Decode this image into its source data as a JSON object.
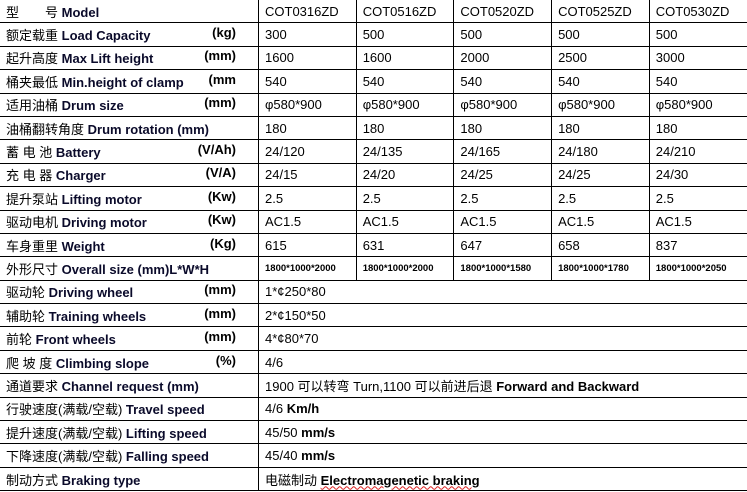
{
  "models": [
    "COT0316ZD",
    "COT0516ZD",
    "COT0520ZD",
    "COT0525ZD",
    "COT0530ZD"
  ],
  "header": {
    "cn": "型　　号",
    "en": "Model"
  },
  "rows": [
    {
      "cn": "额定载重",
      "en": "Load Capacity",
      "unit": "(kg)",
      "values": [
        "300",
        "500",
        "500",
        "500",
        "500"
      ]
    },
    {
      "cn": "起升高度",
      "en": "Max Lift height",
      "unit": "(mm)",
      "values": [
        "1600",
        "1600",
        "2000",
        "2500",
        "3000"
      ]
    },
    {
      "cn": "桶夹最低",
      "en": "Min.height of clamp",
      "unit": "(mm",
      "values": [
        "540",
        "540",
        "540",
        "540",
        "540"
      ]
    },
    {
      "cn": "适用油桶",
      "en": "Drum size",
      "unit": "(mm)",
      "values": [
        "φ580*900",
        "φ580*900",
        "φ580*900",
        "φ580*900",
        "φ580*900"
      ]
    },
    {
      "cn": "油桶翻转角度",
      "en": "Drum rotation (mm)",
      "unit": "",
      "values": [
        "180",
        "180",
        "180",
        "180",
        "180"
      ]
    },
    {
      "cn": "蓄 电 池",
      "en": "Battery",
      "unit": "(V/Ah)",
      "values": [
        "24/120",
        "24/135",
        "24/165",
        "24/180",
        "24/210"
      ]
    },
    {
      "cn": "充 电 器",
      "en": "Charger",
      "unit": "(V/A)",
      "values": [
        "24/15",
        "24/20",
        "24/25",
        "24/25",
        "24/30"
      ]
    },
    {
      "cn": "提升泵站",
      "en": "Lifting motor",
      "unit": "(Kw)",
      "values": [
        "2.5",
        "2.5",
        "2.5",
        "2.5",
        "2.5"
      ]
    },
    {
      "cn": "驱动电机",
      "en": "Driving motor",
      "unit": "(Kw)",
      "values": [
        "AC1.5",
        "AC1.5",
        "AC1.5",
        "AC1.5",
        "AC1.5"
      ]
    },
    {
      "cn": "车身重里",
      "en": "Weight",
      "unit": "(Kg)",
      "values": [
        "615",
        "631",
        "647",
        "658",
        "837"
      ]
    },
    {
      "cn": "外形尺寸",
      "en": "Overall size (mm)L*W*H",
      "unit": "",
      "values": [
        "1800*1000*2000",
        "1800*1000*2000",
        "1800*1000*1580",
        "1800*1000*1780",
        "1800*1000*2050"
      ]
    }
  ],
  "merged_rows": [
    {
      "cn": "驱动轮",
      "en": "Driving wheel",
      "unit": "(mm)",
      "value": "1*¢250*80",
      "value_bold": ""
    },
    {
      "cn": "辅助轮",
      "en": "Training wheels",
      "unit": "(mm)",
      "value": "2*¢150*50",
      "value_bold": ""
    },
    {
      "cn": "前轮",
      "en": "Front wheels",
      "unit": "(mm)",
      "value": "4*¢80*70",
      "value_bold": ""
    },
    {
      "cn": "爬 坡 度",
      "en": "Climbing slope",
      "unit": "(%)",
      "value": "4/6",
      "value_bold": ""
    },
    {
      "cn": "通道要求",
      "en": "Channel request (mm)",
      "unit": "",
      "value": "1900 可以转弯 Turn,1100 可以前进后退",
      "value_bold": "Forward and Backward"
    },
    {
      "cn": "行驶速度(满载/空载)",
      "en": "Travel speed",
      "unit": "",
      "value": "4/6",
      "value_bold": "Km/h"
    },
    {
      "cn": "提升速度(满载/空载)",
      "en": "Lifting speed",
      "unit": "",
      "value": "45/50",
      "value_bold": "mm/s"
    },
    {
      "cn": "下降速度(满载/空载)",
      "en": "Falling speed",
      "unit": "",
      "value": "45/40",
      "value_bold": "mm/s"
    },
    {
      "cn": "制动方式",
      "en": "Braking type",
      "unit": "",
      "value": "电磁制动",
      "value_bold": "Electromagenetic braking"
    }
  ]
}
